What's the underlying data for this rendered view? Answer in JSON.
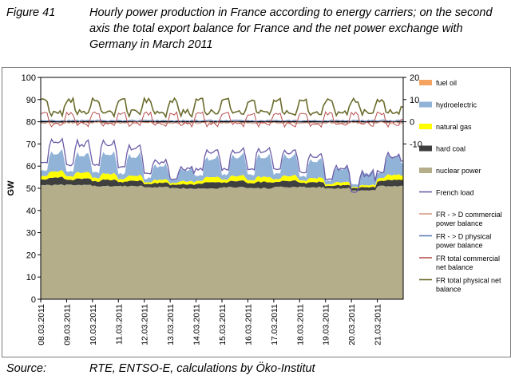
{
  "figure": {
    "label": "Figure 41",
    "title": "Hourly power production in France according to energy carriers; on the second axis the total export balance for France and the net power exchange with Germany in March 2011"
  },
  "source": {
    "label": "Source:",
    "text": "RTE, ENTSO-E, calculations by Öko-Institut"
  },
  "chart_data": {
    "type": "area",
    "ylabel": "GW",
    "ylim": [
      0,
      100
    ],
    "y_ticks": [
      "0",
      "10",
      "20",
      "30",
      "40",
      "50",
      "60",
      "70",
      "80",
      "90",
      "100"
    ],
    "y2lim": [
      -80,
      20
    ],
    "y2_ticks": [
      "20",
      "10",
      "0",
      "-10"
    ],
    "x_ticks": [
      "08.03.2011",
      "09.03.2011",
      "10.03.2011",
      "11.03.2011",
      "12.03.2011",
      "13.03.2011",
      "14.03.2011",
      "15.03.2011",
      "16.03.2011",
      "17.03.2011",
      "18.03.2011",
      "19.03.2011",
      "20.03.2011",
      "21.03.2011"
    ],
    "legend_position": "right",
    "days": [
      {
        "date": "08.03.2011",
        "nuclear": 51.5,
        "coal": 3.5,
        "gas": 3.0,
        "hydro_peak": 9.5,
        "hydro_base": 2.0,
        "load_peak": 73,
        "load_base": 61
      },
      {
        "date": "09.03.2011",
        "nuclear": 51.5,
        "coal": 3.0,
        "gas": 3.0,
        "hydro_peak": 9.0,
        "hydro_base": 2.0,
        "load_peak": 72,
        "load_base": 60
      },
      {
        "date": "10.03.2011",
        "nuclear": 51.0,
        "coal": 3.0,
        "gas": 3.0,
        "hydro_peak": 10.0,
        "hydro_base": 2.0,
        "load_peak": 72,
        "load_base": 60
      },
      {
        "date": "11.03.2011",
        "nuclear": 51.0,
        "coal": 2.5,
        "gas": 2.5,
        "hydro_peak": 10.0,
        "hydro_base": 2.0,
        "load_peak": 70,
        "load_base": 59
      },
      {
        "date": "12.03.2011",
        "nuclear": 50.5,
        "coal": 2.0,
        "gas": 1.5,
        "hydro_peak": 7.0,
        "hydro_base": 1.5,
        "load_peak": 63,
        "load_base": 56
      },
      {
        "date": "13.03.2011",
        "nuclear": 50.0,
        "coal": 2.0,
        "gas": 1.5,
        "hydro_peak": 6.0,
        "hydro_base": 1.5,
        "load_peak": 60,
        "load_base": 54
      },
      {
        "date": "14.03.2011",
        "nuclear": 50.0,
        "coal": 3.0,
        "gas": 2.5,
        "hydro_peak": 9.5,
        "hydro_base": 2.0,
        "load_peak": 68,
        "load_base": 58
      },
      {
        "date": "15.03.2011",
        "nuclear": 50.5,
        "coal": 3.0,
        "gas": 2.5,
        "hydro_peak": 10.0,
        "hydro_base": 2.0,
        "load_peak": 68,
        "load_base": 58
      },
      {
        "date": "16.03.2011",
        "nuclear": 50.0,
        "coal": 3.0,
        "gas": 2.5,
        "hydro_peak": 10.5,
        "hydro_base": 2.0,
        "load_peak": 69,
        "load_base": 58
      },
      {
        "date": "17.03.2011",
        "nuclear": 50.5,
        "coal": 3.0,
        "gas": 2.5,
        "hydro_peak": 10.0,
        "hydro_base": 2.0,
        "load_peak": 68,
        "load_base": 58
      },
      {
        "date": "18.03.2011",
        "nuclear": 50.5,
        "coal": 2.5,
        "gas": 2.0,
        "hydro_peak": 9.0,
        "hydro_base": 1.5,
        "load_peak": 66,
        "load_base": 57
      },
      {
        "date": "19.03.2011",
        "nuclear": 50.0,
        "coal": 1.5,
        "gas": 1.5,
        "hydro_peak": 7.0,
        "hydro_base": 1.5,
        "load_peak": 60,
        "load_base": 54
      },
      {
        "date": "20.03.2011",
        "nuclear": 49.0,
        "coal": 1.5,
        "gas": 1.0,
        "hydro_peak": 6.5,
        "hydro_base": 1.0,
        "load_peak": 58,
        "load_base": 48
      },
      {
        "date": "21.03.2011",
        "nuclear": 51.0,
        "coal": 3.0,
        "gas": 2.5,
        "hydro_peak": 9.5,
        "hydro_base": 2.0,
        "load_peak": 66,
        "load_base": 57
      }
    ],
    "secondary_axis": {
      "fr_total_physical_net_balance": {
        "peak": 10,
        "base": 3
      },
      "fr_total_commercial_net_balance": {
        "peak": 4,
        "base": -2
      },
      "fr_d_physical_power_balance": {
        "value": 0.5
      },
      "fr_d_commercial_power_balance": {
        "value": -0.5
      }
    },
    "series": [
      {
        "name": "fuel oil",
        "color": "#f4a460"
      },
      {
        "name": "hydroelectric",
        "color": "#91b3d7"
      },
      {
        "name": "natural gas",
        "color": "#ffff00"
      },
      {
        "name": "hard coal",
        "color": "#3f3f3f"
      },
      {
        "name": "nuclear power",
        "color": "#b5ae8a"
      },
      {
        "name": "French load",
        "color": "#6b5ba8"
      },
      {
        "name": "FR - > D commercial power balance",
        "color": "#d99a82"
      },
      {
        "name": "FR - > D physical power balance",
        "color": "#5f7fb8"
      },
      {
        "name": "FR total commercial net balance",
        "color": "#b85050"
      },
      {
        "name": "FR total physical net balance",
        "color": "#6b6b2d"
      }
    ]
  }
}
